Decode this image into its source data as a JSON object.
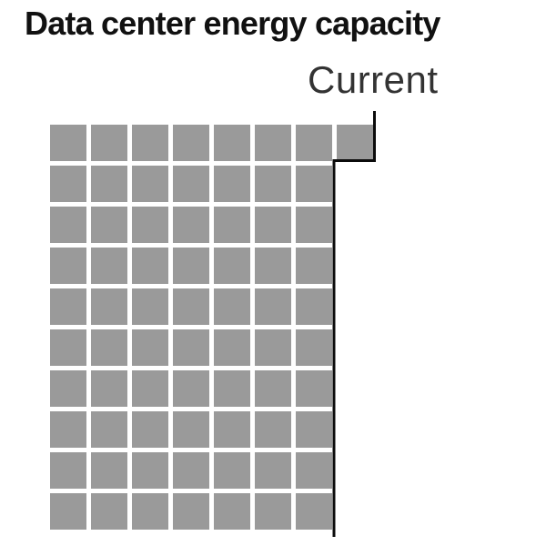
{
  "page": {
    "background": "#ffffff"
  },
  "chart_data": {
    "type": "waffle",
    "title": "Data center energy capacity",
    "annotation_label": "Current",
    "rows": 10,
    "columns_max": 8,
    "row_lengths": [
      8,
      7,
      7,
      7,
      7,
      7,
      7,
      7,
      7,
      7
    ],
    "total_squares": 71,
    "marker": {
      "label": "Current",
      "shape": "stepped-line",
      "description": "Black stepped line tracing the right edge of the filled squares: 8 squares wide in the top row, 7 squares wide in the rows below, with a tick extending up toward the Current label."
    },
    "colors": {
      "square": "#9a9a9a",
      "marker_line": "#0b0b0b",
      "title_text": "#111111",
      "annotation_text": "#333333",
      "background": "#ffffff"
    },
    "legend_position": "none",
    "axes": "none",
    "grid": "off"
  }
}
